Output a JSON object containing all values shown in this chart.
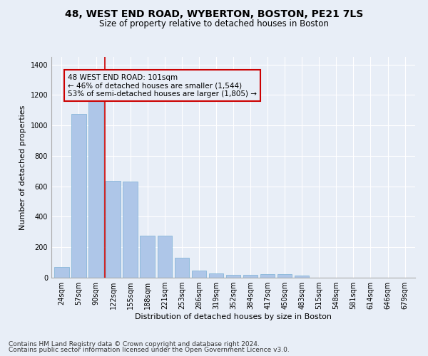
{
  "title1": "48, WEST END ROAD, WYBERTON, BOSTON, PE21 7LS",
  "title2": "Size of property relative to detached houses in Boston",
  "xlabel": "Distribution of detached houses by size in Boston",
  "ylabel": "Number of detached properties",
  "categories": [
    "24sqm",
    "57sqm",
    "90sqm",
    "122sqm",
    "155sqm",
    "188sqm",
    "221sqm",
    "253sqm",
    "286sqm",
    "319sqm",
    "352sqm",
    "384sqm",
    "417sqm",
    "450sqm",
    "483sqm",
    "515sqm",
    "548sqm",
    "581sqm",
    "614sqm",
    "646sqm",
    "679sqm"
  ],
  "values": [
    68,
    1075,
    1160,
    635,
    630,
    275,
    275,
    130,
    47,
    30,
    20,
    20,
    22,
    22,
    12,
    0,
    0,
    0,
    0,
    0,
    0
  ],
  "bar_color": "#aec6e8",
  "bar_edge_color": "#7ab0d4",
  "vline_x": 2.5,
  "vline_color": "#cc0000",
  "annotation_line1": "48 WEST END ROAD: 101sqm",
  "annotation_line2": "← 46% of detached houses are smaller (1,544)",
  "annotation_line3": "53% of semi-detached houses are larger (1,805) →",
  "box_edge_color": "#cc0000",
  "ylim": [
    0,
    1450
  ],
  "yticks": [
    0,
    200,
    400,
    600,
    800,
    1000,
    1200,
    1400
  ],
  "background_color": "#e8eef7",
  "grid_color": "#ffffff",
  "footer1": "Contains HM Land Registry data © Crown copyright and database right 2024.",
  "footer2": "Contains public sector information licensed under the Open Government Licence v3.0.",
  "title1_fontsize": 10,
  "title2_fontsize": 8.5,
  "xlabel_fontsize": 8,
  "ylabel_fontsize": 8,
  "tick_fontsize": 7,
  "annotation_fontsize": 7.5,
  "footer_fontsize": 6.5
}
